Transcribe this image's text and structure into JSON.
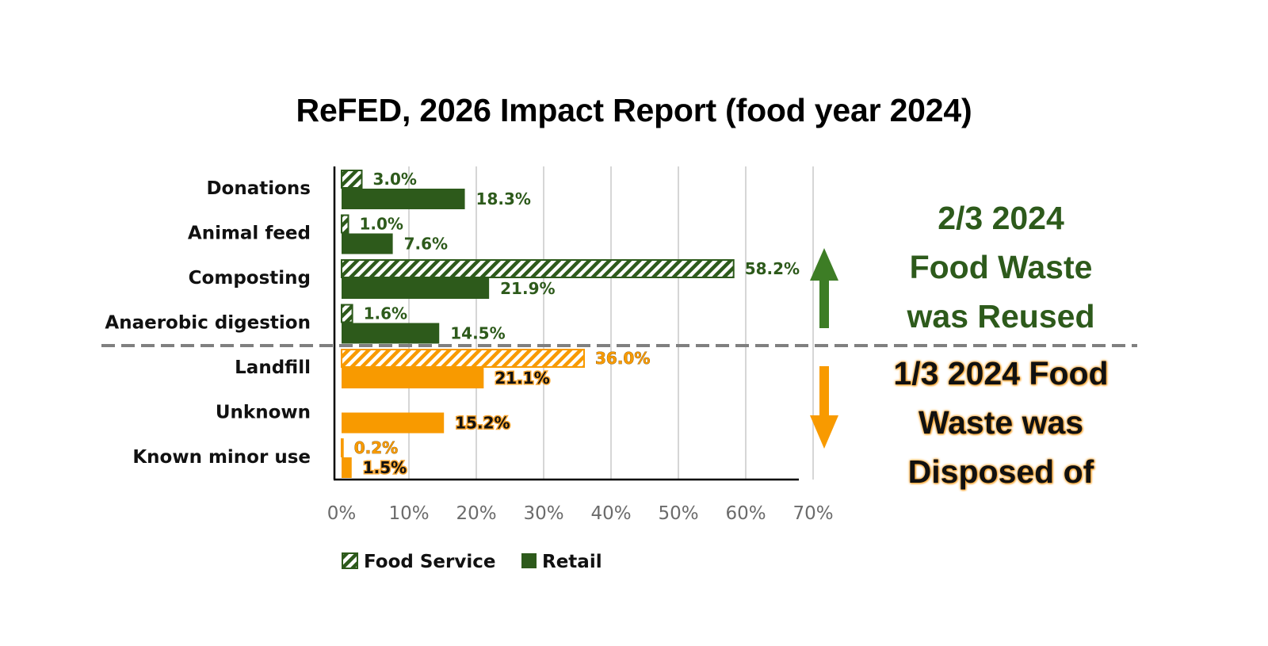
{
  "chart_data": {
    "type": "bar",
    "orientation": "horizontal",
    "title": "ReFED, 2026 Impact Report (food year 2024)",
    "xlabel": "",
    "ylabel": "",
    "xlim": [
      0,
      70
    ],
    "x_ticks": [
      "0%",
      "10%",
      "20%",
      "30%",
      "40%",
      "50%",
      "60%",
      "70%"
    ],
    "grid": "vertical",
    "categories": [
      "Donations",
      "Animal feed",
      "Composting",
      "Anaerobic digestion",
      "Landfill",
      "Unknown",
      "Known minor use"
    ],
    "category_groups": [
      "reused",
      "reused",
      "reused",
      "reused",
      "disposed",
      "disposed",
      "disposed"
    ],
    "series": [
      {
        "name": "Food Service",
        "pattern": "hatched",
        "values": [
          3.0,
          1.0,
          58.2,
          1.6,
          36.0,
          null,
          0.2
        ],
        "labels": [
          "3.0%",
          "1.0%",
          "58.2%",
          "1.6%",
          "36.0%",
          "",
          "0.2%"
        ]
      },
      {
        "name": "Retail",
        "pattern": "solid",
        "values": [
          18.3,
          7.6,
          21.9,
          14.5,
          21.1,
          15.2,
          1.5
        ],
        "labels": [
          "18.3%",
          "7.6%",
          "21.9%",
          "14.5%",
          "21.1%",
          "15.2%",
          "1.5%"
        ]
      }
    ],
    "legend": {
      "position": "bottom",
      "entries": [
        "Food Service",
        "Retail"
      ]
    },
    "colors": {
      "reused": "#2d5a1b",
      "disposed": "#f89a00",
      "divider": "#808080",
      "up_arrow": "#3d7d25"
    },
    "annotations": [
      {
        "id": "reused",
        "text_lines": [
          "2/3 2024",
          "Food Waste",
          "was Reused"
        ],
        "arrow": "up"
      },
      {
        "id": "disposed",
        "text_lines": [
          "1/3 2024 Food",
          "Waste was",
          "Disposed of"
        ],
        "arrow": "down"
      }
    ]
  }
}
